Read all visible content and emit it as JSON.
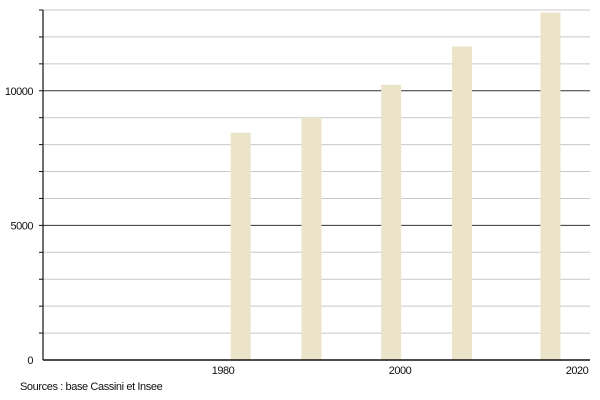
{
  "chart_data": {
    "type": "bar",
    "x": [
      1982,
      1990,
      1999,
      2007,
      2017
    ],
    "values": [
      8440,
      9000,
      10220,
      11640,
      12900
    ],
    "xlim": [
      1960,
      2022
    ],
    "ylim": [
      0,
      13000
    ],
    "x_ticks": [
      1980,
      2000,
      2020
    ],
    "y_ticks": [
      0,
      5000,
      10000
    ],
    "y_minor_step": 1000,
    "grid": true,
    "bar_color": "#ebe4c9",
    "major_grid_color": "#333333",
    "minor_grid_color": "#c8c8c8",
    "source": "Sources : base Cassini et Insee"
  }
}
